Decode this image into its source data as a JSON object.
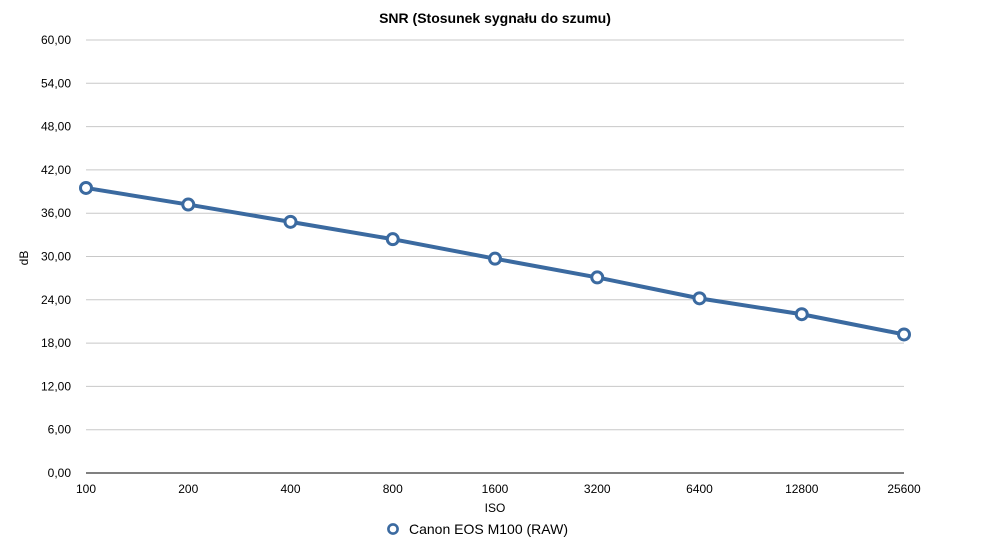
{
  "chart_data": {
    "type": "line",
    "title": "SNR (Stosunek sygnału do szumu)",
    "xlabel": "ISO",
    "ylabel": "dB",
    "categories": [
      "100",
      "200",
      "400",
      "800",
      "1600",
      "3200",
      "6400",
      "12800",
      "25600"
    ],
    "y_ticks": [
      "0,00",
      "6,00",
      "12,00",
      "18,00",
      "24,00",
      "30,00",
      "36,00",
      "42,00",
      "48,00",
      "54,00",
      "60,00"
    ],
    "ylim": [
      0,
      60
    ],
    "grid": true,
    "legend_position": "bottom",
    "series": [
      {
        "name": "Canon EOS M100 (RAW)",
        "color": "#3b6aa0",
        "values": [
          39.5,
          37.2,
          34.8,
          32.4,
          29.7,
          27.1,
          24.2,
          22.0,
          19.2
        ]
      }
    ]
  }
}
